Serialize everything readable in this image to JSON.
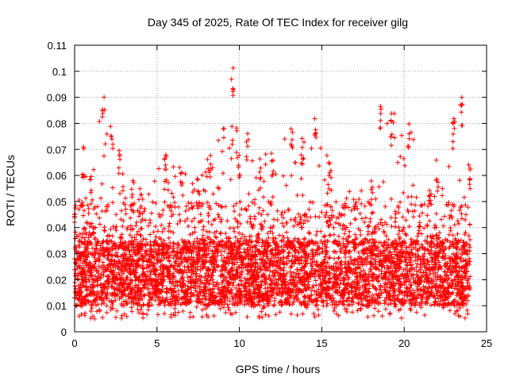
{
  "chart_data": {
    "type": "scatter",
    "title": "Day 345 of 2025, Rate Of TEC Index for receiver gilg",
    "xlabel": "GPS time / hours",
    "ylabel": "ROTI / TECUs",
    "xlim": [
      0,
      25
    ],
    "ylim": [
      0,
      0.11
    ],
    "xticks": [
      "0",
      "5",
      "10",
      "15",
      "20",
      "25"
    ],
    "yticks": [
      "0",
      "0.01",
      "0.02",
      "0.03",
      "0.04",
      "0.05",
      "0.06",
      "0.07",
      "0.08",
      "0.09",
      "0.1",
      "0.11"
    ],
    "xtick_values": [
      0,
      5,
      10,
      15,
      20,
      25
    ],
    "ytick_values": [
      0,
      0.01,
      0.02,
      0.03,
      0.04,
      0.05,
      0.06,
      0.07,
      0.08,
      0.09,
      0.1,
      0.11
    ],
    "grid": true,
    "marker": "+",
    "color": "#ff0000",
    "x_range_of_data": [
      0,
      24
    ],
    "typical_band": [
      0.01,
      0.035
    ],
    "envelope": [
      {
        "x": 0.0,
        "y": 0.05
      },
      {
        "x": 0.5,
        "y": 0.071
      },
      {
        "x": 1.0,
        "y": 0.06
      },
      {
        "x": 1.75,
        "y": 0.091
      },
      {
        "x": 2.25,
        "y": 0.079
      },
      {
        "x": 2.75,
        "y": 0.07
      },
      {
        "x": 3.5,
        "y": 0.058
      },
      {
        "x": 4.0,
        "y": 0.055
      },
      {
        "x": 5.5,
        "y": 0.068
      },
      {
        "x": 6.5,
        "y": 0.064
      },
      {
        "x": 7.5,
        "y": 0.06
      },
      {
        "x": 8.3,
        "y": 0.07
      },
      {
        "x": 9.6,
        "y": 0.102
      },
      {
        "x": 10.0,
        "y": 0.07
      },
      {
        "x": 10.5,
        "y": 0.078
      },
      {
        "x": 11.3,
        "y": 0.067
      },
      {
        "x": 12.0,
        "y": 0.07
      },
      {
        "x": 13.2,
        "y": 0.082
      },
      {
        "x": 13.8,
        "y": 0.076
      },
      {
        "x": 14.6,
        "y": 0.083
      },
      {
        "x": 15.5,
        "y": 0.065
      },
      {
        "x": 17.0,
        "y": 0.055
      },
      {
        "x": 18.0,
        "y": 0.06
      },
      {
        "x": 18.6,
        "y": 0.09
      },
      {
        "x": 19.2,
        "y": 0.086
      },
      {
        "x": 20.3,
        "y": 0.08
      },
      {
        "x": 21.5,
        "y": 0.055
      },
      {
        "x": 22.0,
        "y": 0.066
      },
      {
        "x": 23.0,
        "y": 0.082
      },
      {
        "x": 23.5,
        "y": 0.091
      },
      {
        "x": 24.0,
        "y": 0.065
      }
    ]
  }
}
